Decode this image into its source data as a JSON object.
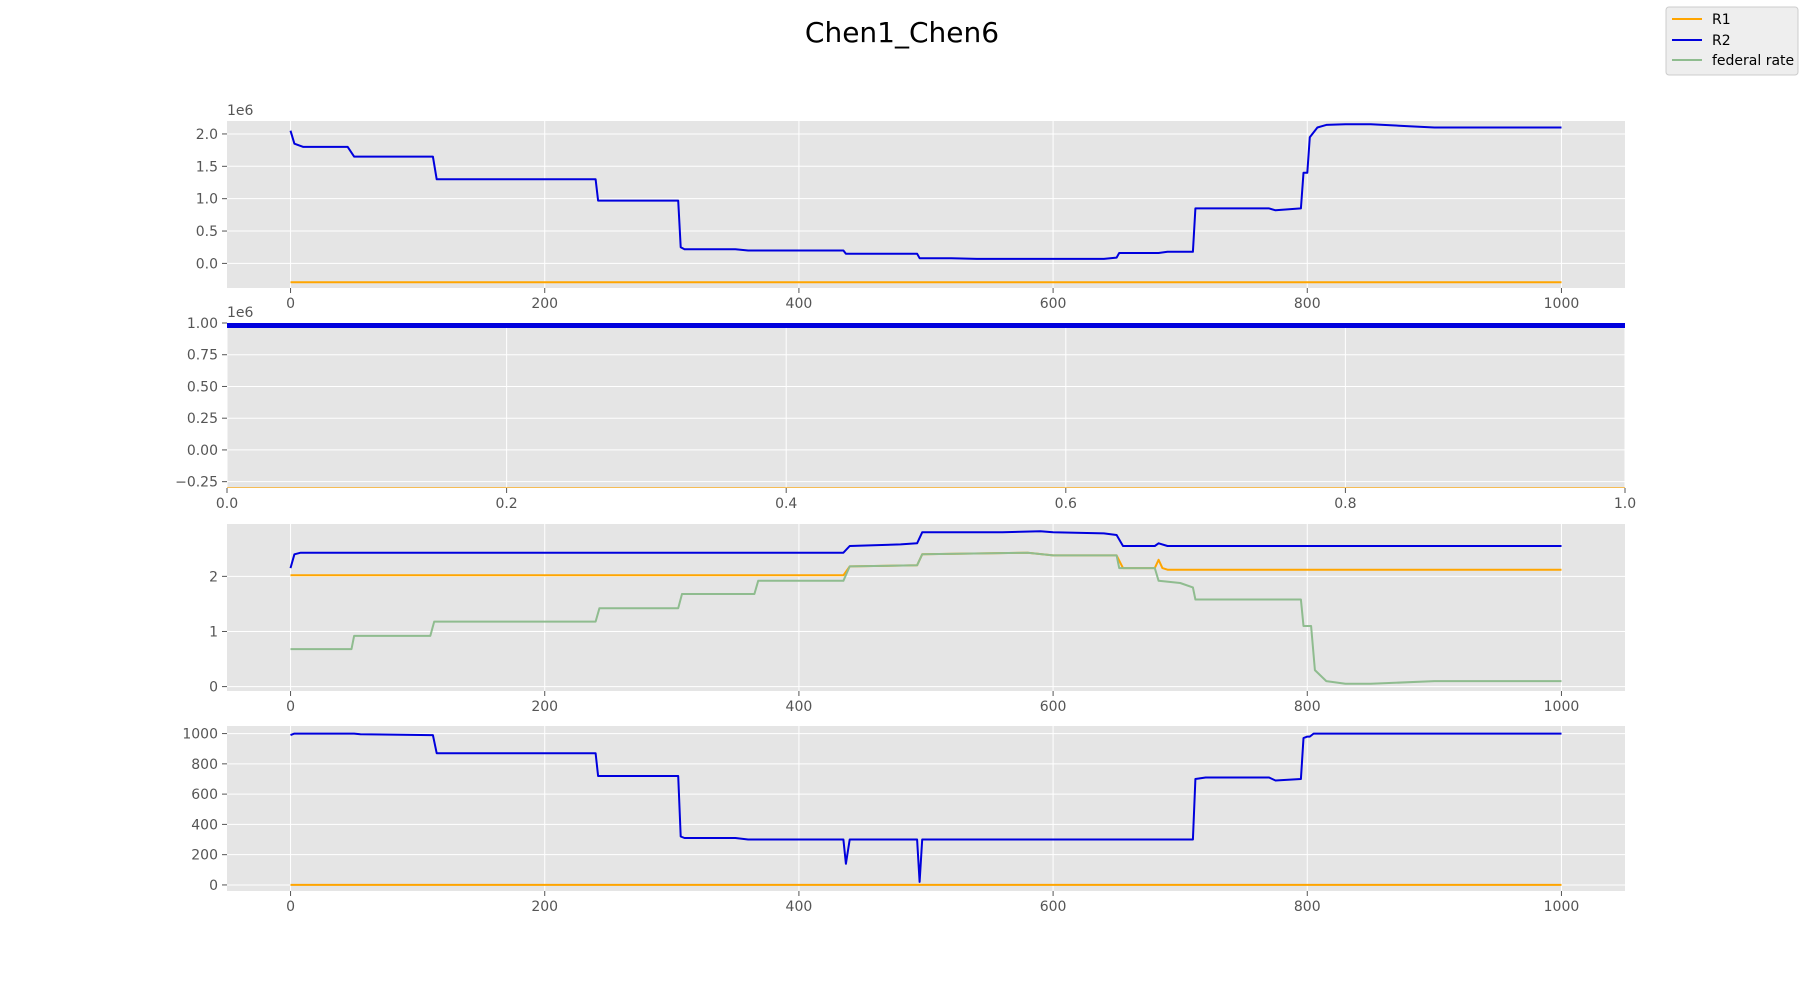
{
  "title": "Chen1_Chen6",
  "colors": {
    "R1": "#ffa500",
    "R2": "#0000dd",
    "federal rate": "#8fbc8f",
    "axes_bg": "#e5e5e5",
    "grid": "#ffffff",
    "tick": "#555555"
  },
  "legend": {
    "placement": "top-right",
    "entries": [
      "R1",
      "R2",
      "federal rate"
    ]
  },
  "chart_data": [
    {
      "type": "line",
      "xlim": [
        -50,
        1050
      ],
      "ylim": [
        -0.38,
        2.2
      ],
      "y_scale_label": "1e6",
      "xticks": [
        "0",
        "200",
        "400",
        "600",
        "800",
        "1000"
      ],
      "yticks": [
        "0.0",
        "0.5",
        "1.0",
        "1.5",
        "2.0"
      ],
      "grid": true,
      "series": [
        {
          "name": "R2",
          "x": [
            0,
            3,
            10,
            45,
            50,
            100,
            112,
            115,
            240,
            242,
            305,
            307,
            310,
            350,
            360,
            400,
            435,
            437,
            440,
            480,
            493,
            495,
            497,
            520,
            540,
            560,
            600,
            640,
            650,
            652,
            680,
            683,
            690,
            710,
            712,
            720,
            770,
            775,
            795,
            797,
            800,
            802,
            808,
            815,
            830,
            850,
            880,
            900,
            950,
            1000
          ],
          "y": [
            2.05,
            1.85,
            1.8,
            1.8,
            1.65,
            1.65,
            1.65,
            1.3,
            1.3,
            0.97,
            0.97,
            0.25,
            0.22,
            0.22,
            0.2,
            0.2,
            0.2,
            0.15,
            0.15,
            0.15,
            0.15,
            0.08,
            0.08,
            0.08,
            0.07,
            0.07,
            0.07,
            0.07,
            0.09,
            0.16,
            0.16,
            0.16,
            0.18,
            0.18,
            0.85,
            0.85,
            0.85,
            0.82,
            0.85,
            1.4,
            1.4,
            1.95,
            2.1,
            2.14,
            2.15,
            2.15,
            2.12,
            2.1,
            2.1,
            2.1
          ]
        },
        {
          "name": "R1",
          "x": [
            0,
            1000
          ],
          "y": [
            -0.29,
            -0.29
          ]
        }
      ]
    },
    {
      "type": "line",
      "xlim": [
        0.0,
        1.0
      ],
      "ylim": [
        -0.3,
        1.0
      ],
      "y_scale_label": "1e6",
      "xticks": [
        "0.0",
        "0.2",
        "0.4",
        "0.6",
        "0.8",
        "1.0"
      ],
      "yticks": [
        "−0.25",
        "0.00",
        "0.25",
        "0.50",
        "0.75",
        "1.00"
      ],
      "grid": true,
      "series": [
        {
          "name": "R2",
          "x": [
            0.0,
            1.0
          ],
          "y": [
            0.98,
            0.98
          ]
        },
        {
          "name": "R1",
          "x": [
            0.0,
            1.0
          ],
          "y": [
            -0.315,
            -0.315
          ]
        }
      ]
    },
    {
      "type": "line",
      "xlim": [
        -50,
        1050
      ],
      "ylim": [
        -0.08,
        2.95
      ],
      "xticks": [
        "0",
        "200",
        "400",
        "600",
        "800",
        "1000"
      ],
      "yticks": [
        "0",
        "1",
        "2"
      ],
      "grid": true,
      "series": [
        {
          "name": "R2",
          "x": [
            0,
            3,
            8,
            435,
            440,
            480,
            493,
            497,
            520,
            560,
            590,
            600,
            640,
            650,
            655,
            680,
            683,
            690,
            1000
          ],
          "y": [
            2.15,
            2.4,
            2.43,
            2.43,
            2.55,
            2.58,
            2.6,
            2.8,
            2.8,
            2.8,
            2.82,
            2.8,
            2.78,
            2.75,
            2.55,
            2.55,
            2.6,
            2.55,
            2.55
          ]
        },
        {
          "name": "R1",
          "x": [
            0,
            435,
            440,
            493,
            497,
            580,
            600,
            650,
            655,
            680,
            683,
            686,
            690,
            1000
          ],
          "y": [
            2.02,
            2.02,
            2.18,
            2.2,
            2.4,
            2.43,
            2.38,
            2.38,
            2.15,
            2.15,
            2.3,
            2.15,
            2.12,
            2.12
          ]
        },
        {
          "name": "federal rate",
          "x": [
            0,
            48,
            50,
            110,
            113,
            240,
            243,
            305,
            308,
            365,
            368,
            435,
            440,
            493,
            497,
            580,
            600,
            650,
            652,
            680,
            683,
            700,
            710,
            712,
            795,
            797,
            803,
            806,
            815,
            830,
            850,
            900,
            950,
            1000
          ],
          "y": [
            0.68,
            0.68,
            0.92,
            0.92,
            1.18,
            1.18,
            1.42,
            1.42,
            1.68,
            1.68,
            1.92,
            1.92,
            2.18,
            2.2,
            2.4,
            2.43,
            2.38,
            2.38,
            2.15,
            2.15,
            1.92,
            1.88,
            1.8,
            1.58,
            1.58,
            1.1,
            1.1,
            0.3,
            0.1,
            0.05,
            0.05,
            0.1,
            0.1,
            0.1
          ]
        }
      ]
    },
    {
      "type": "line",
      "xlim": [
        -50,
        1050
      ],
      "ylim": [
        -40,
        1050
      ],
      "xticks": [
        "0",
        "200",
        "400",
        "600",
        "800",
        "1000"
      ],
      "yticks": [
        "0",
        "200",
        "400",
        "600",
        "800",
        "1000"
      ],
      "grid": true,
      "series": [
        {
          "name": "R2",
          "x": [
            0,
            3,
            50,
            55,
            110,
            112,
            115,
            240,
            242,
            305,
            307,
            310,
            350,
            360,
            400,
            435,
            437,
            440,
            493,
            495,
            497,
            680,
            683,
            710,
            712,
            720,
            770,
            775,
            795,
            797,
            800,
            802,
            805,
            1000
          ],
          "y": [
            990,
            1000,
            1000,
            995,
            990,
            990,
            870,
            870,
            720,
            720,
            320,
            310,
            310,
            300,
            300,
            300,
            140,
            300,
            300,
            20,
            300,
            300,
            300,
            300,
            700,
            710,
            710,
            690,
            700,
            970,
            980,
            980,
            1000,
            1000
          ]
        },
        {
          "name": "R1",
          "x": [
            0,
            1000
          ],
          "y": [
            0,
            0
          ]
        }
      ]
    }
  ]
}
